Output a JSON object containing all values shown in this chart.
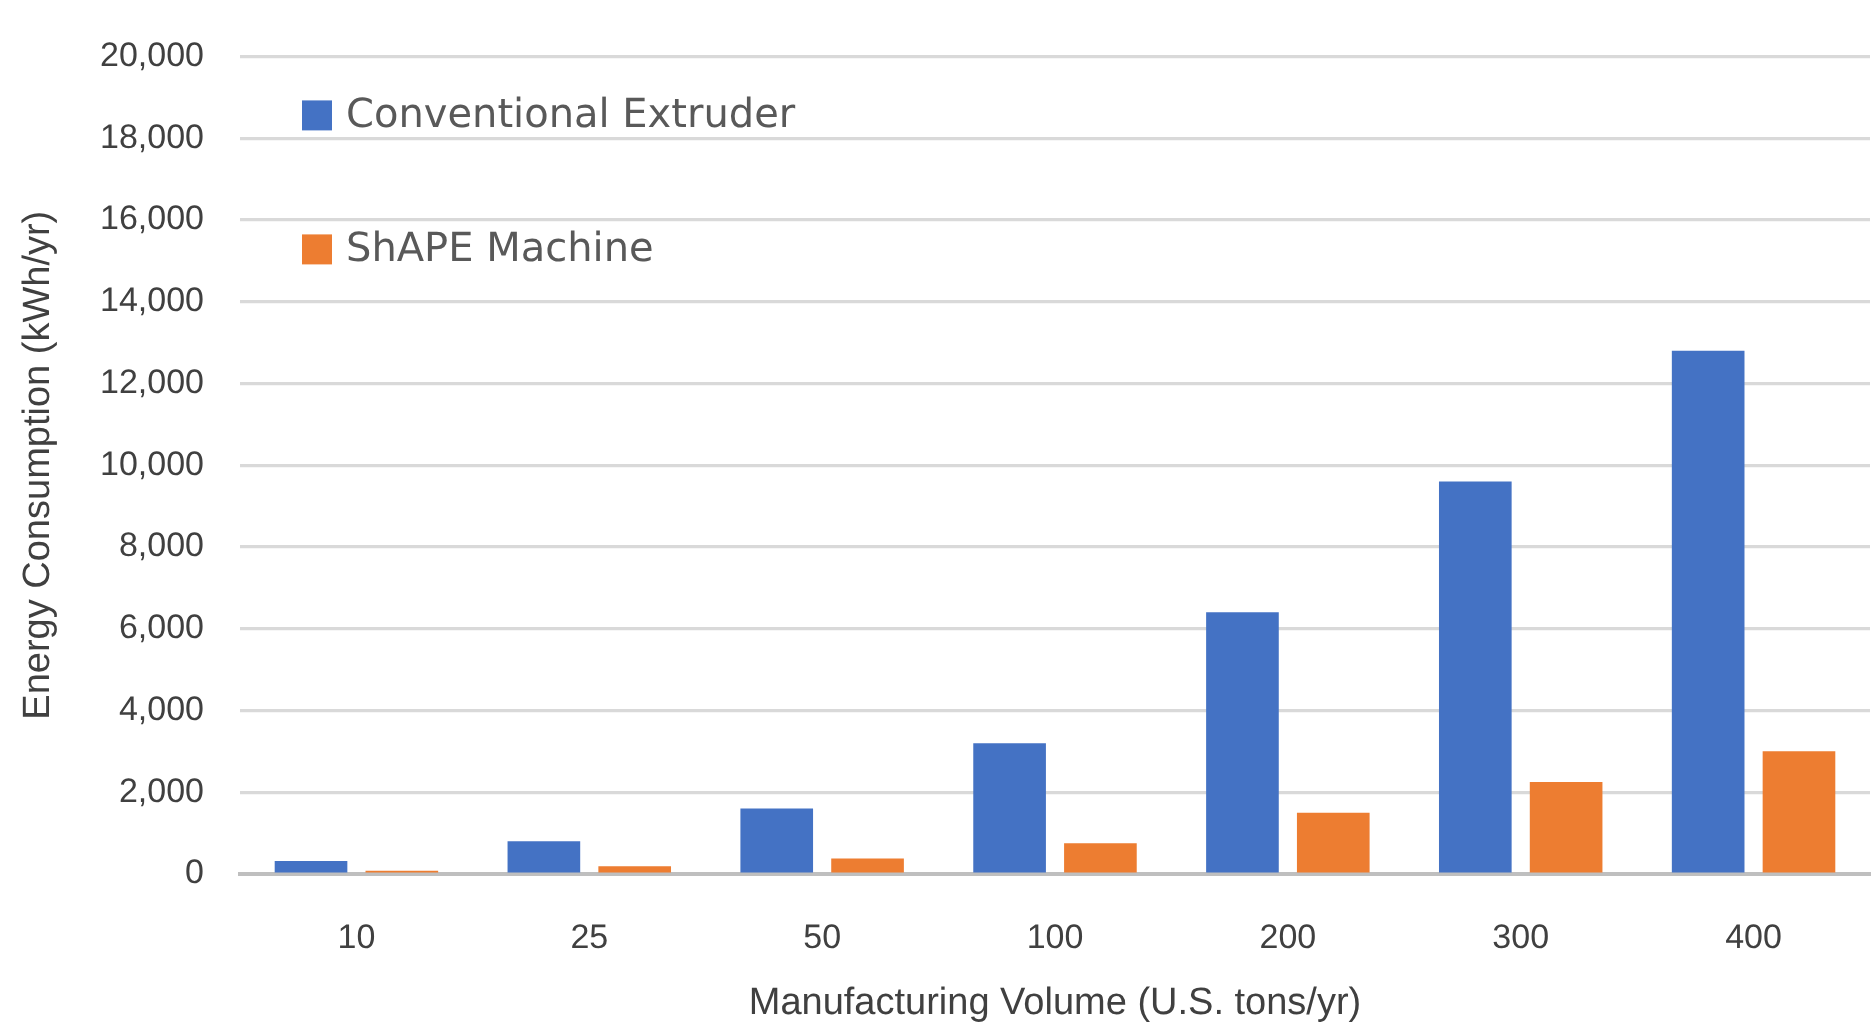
{
  "chart_data": {
    "type": "bar",
    "xlabel": "Manufacturing Volume (U.S. tons/yr)",
    "ylabel": "Energy Consumption (kWh/yr)",
    "categories": [
      "10",
      "25",
      "50",
      "100",
      "200",
      "300",
      "400"
    ],
    "series": [
      {
        "name": "Conventional Extruder",
        "color": "#4472c4",
        "values": [
          320,
          800,
          1600,
          3200,
          6400,
          9600,
          12800
        ]
      },
      {
        "name": "ShAPE Machine",
        "color": "#ed7d31",
        "values": [
          80,
          190,
          380,
          750,
          1500,
          2250,
          3000
        ]
      }
    ],
    "ylim": [
      0,
      20000
    ],
    "yticks": [
      0,
      {
        "value": 2000,
        "label": "2,000"
      },
      {
        "value": 4000,
        "label": "4,000"
      },
      {
        "value": 6000,
        "label": "6,000"
      },
      {
        "value": 8000,
        "label": "8,000"
      },
      {
        "value": 10000,
        "label": "10,000"
      },
      {
        "value": 12000,
        "label": "12,000"
      },
      {
        "value": 14000,
        "label": "14,000"
      },
      {
        "value": 16000,
        "label": "16,000"
      },
      {
        "value": 18000,
        "label": "18,000"
      },
      {
        "value": 20000,
        "label": "20,000"
      }
    ],
    "grid": "y",
    "legend": "top left"
  }
}
